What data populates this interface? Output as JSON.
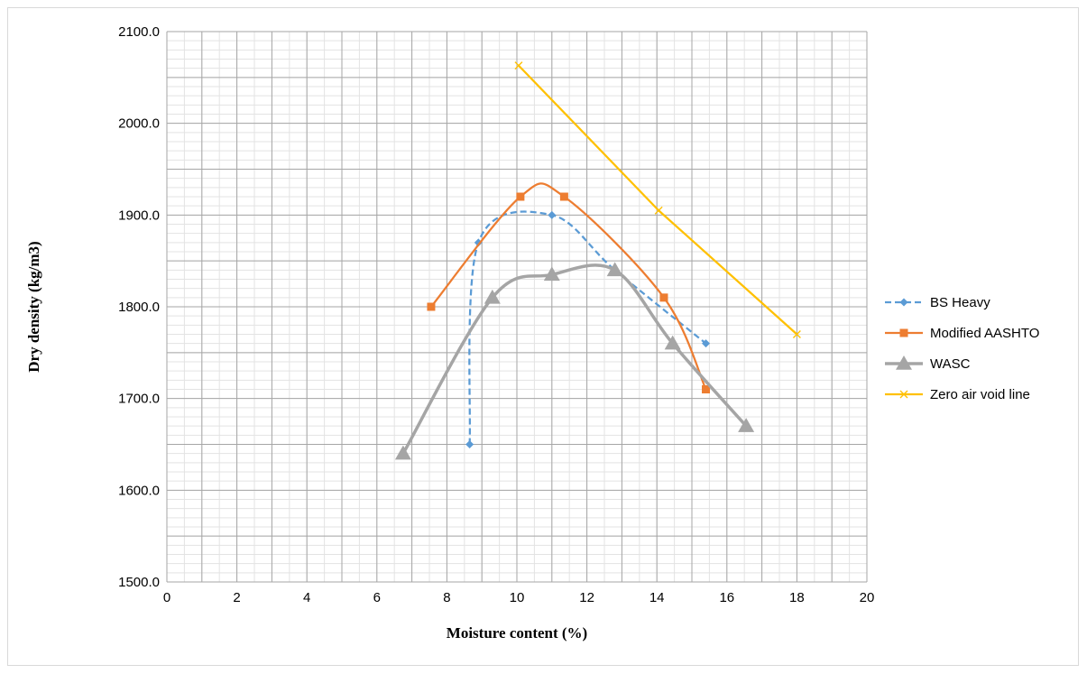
{
  "chart_data": {
    "type": "line",
    "xlabel": "Moisture content (%)",
    "ylabel": "Dry density (kg/m3)",
    "xlim": [
      0,
      20
    ],
    "ylim": [
      1500,
      2100
    ],
    "x_ticks": [
      0,
      2,
      4,
      6,
      8,
      10,
      12,
      14,
      16,
      18,
      20
    ],
    "y_ticks": [
      "1500.0",
      "1600.0",
      "1700.0",
      "1800.0",
      "1900.0",
      "2000.0",
      "2100.0"
    ],
    "grid": true,
    "minor_grid": true,
    "legend_position": "right",
    "series": [
      {
        "name": "BS Heavy",
        "color": "#5b9bd5",
        "dash": true,
        "marker": "diamond",
        "points": [
          [
            8.65,
            1650
          ],
          [
            8.9,
            1870
          ],
          [
            11.0,
            1900
          ],
          [
            12.8,
            1840
          ],
          [
            15.4,
            1760
          ]
        ]
      },
      {
        "name": "Modified AASHTO",
        "color": "#ed7d31",
        "dash": false,
        "marker": "square",
        "points": [
          [
            7.55,
            1800
          ],
          [
            10.1,
            1920
          ],
          [
            11.35,
            1920
          ],
          [
            14.2,
            1810
          ],
          [
            15.4,
            1710
          ]
        ]
      },
      {
        "name": "WASC",
        "color": "#a5a5a5",
        "dash": false,
        "marker": "triangle",
        "points": [
          [
            6.75,
            1640
          ],
          [
            9.3,
            1810
          ],
          [
            11.0,
            1835
          ],
          [
            12.8,
            1840
          ],
          [
            14.45,
            1760
          ],
          [
            16.55,
            1670
          ]
        ]
      },
      {
        "name": "Zero air void line",
        "color": "#ffc000",
        "dash": false,
        "marker": "x",
        "points": [
          [
            10.05,
            2063
          ],
          [
            14.05,
            1905
          ],
          [
            18.0,
            1770
          ]
        ]
      }
    ]
  }
}
